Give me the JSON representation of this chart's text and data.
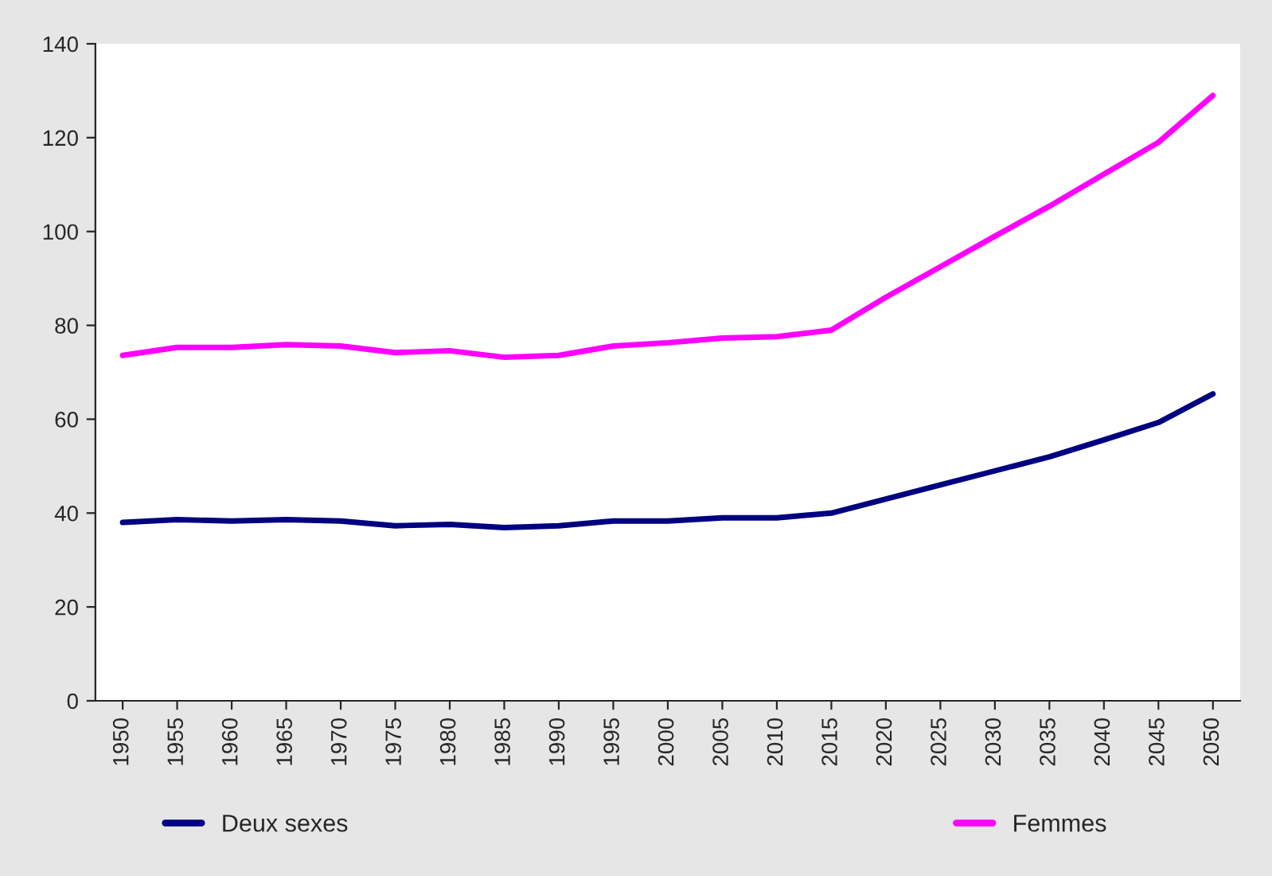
{
  "chart_data": {
    "type": "line",
    "categories": [
      "1950",
      "1955",
      "1960",
      "1965",
      "1970",
      "1975",
      "1980",
      "1985",
      "1990",
      "1995",
      "2000",
      "2005",
      "2010",
      "2015",
      "2020",
      "2025",
      "2030",
      "2035",
      "2040",
      "2045",
      "2050"
    ],
    "series": [
      {
        "name": "Deux sexes",
        "color": "#000080",
        "values": [
          38,
          38.6,
          38.3,
          38.6,
          38.3,
          37.3,
          37.6,
          36.9,
          37.3,
          38.3,
          38.3,
          39,
          39,
          40,
          43,
          46,
          49,
          52,
          55.6,
          59.3,
          65.4
        ]
      },
      {
        "name": "Femmes",
        "color": "#ff00ff",
        "values": [
          73.6,
          75.3,
          75.3,
          75.9,
          75.6,
          74.2,
          74.6,
          73.2,
          73.6,
          75.6,
          76.3,
          77.3,
          77.6,
          79,
          86,
          92.5,
          99,
          105.4,
          112.2,
          119,
          129
        ]
      }
    ],
    "ylim": [
      0,
      140
    ],
    "yticks": [
      0,
      20,
      40,
      60,
      80,
      100,
      120,
      140
    ],
    "grid": false,
    "legend": "bottom",
    "marker": "none",
    "line_style": "solid"
  }
}
